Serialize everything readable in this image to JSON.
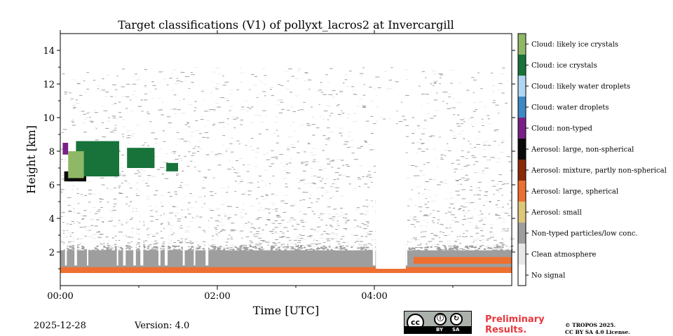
{
  "chart_data": {
    "type": "heatmap",
    "title": "Target classifications (V1) of pollyxt_lacros2 at Invercargill",
    "xlabel": "Time [UTC]",
    "ylabel": "Height [km]",
    "xlim_hours": [
      0,
      5.75
    ],
    "ylim": [
      0,
      15
    ],
    "x_ticks": [
      {
        "value": 0,
        "label": "00:00"
      },
      {
        "value": 2,
        "label": "02:00"
      },
      {
        "value": 4,
        "label": "04:00"
      }
    ],
    "x_minor_ticks": [
      1,
      3,
      5
    ],
    "y_ticks": [
      {
        "value": 2,
        "label": "2"
      },
      {
        "value": 4,
        "label": "4"
      },
      {
        "value": 6,
        "label": "6"
      },
      {
        "value": 8,
        "label": "8"
      },
      {
        "value": 10,
        "label": "10"
      },
      {
        "value": 12,
        "label": "12"
      },
      {
        "value": 14,
        "label": "14"
      }
    ],
    "colorbar": [
      {
        "label": "No signal",
        "color": "#ffffff"
      },
      {
        "label": "Clean atmosphere",
        "color": "#e8e8e8"
      },
      {
        "label": "Non-typed particles/low conc.",
        "color": "#9e9e9e"
      },
      {
        "label": "Aerosol: small",
        "color": "#dfc77a"
      },
      {
        "label": "Aerosol: large, spherical",
        "color": "#ee7031"
      },
      {
        "label": "Aerosol: mixture, partly non-spherical",
        "color": "#8a2a06"
      },
      {
        "label": "Aerosol: large, non-spherical",
        "color": "#0a0a0a"
      },
      {
        "label": "Cloud: non-typed",
        "color": "#7a1f86"
      },
      {
        "label": "Cloud: water droplets",
        "color": "#3c89c6"
      },
      {
        "label": "Cloud: likely water droplets",
        "color": "#afd7f3"
      },
      {
        "label": "Cloud: ice crystals",
        "color": "#17733a"
      },
      {
        "label": "Cloud: likely ice crystals",
        "color": "#8fb866"
      }
    ],
    "regions": [
      {
        "class": 2,
        "t0": 0.0,
        "t1": 5.75,
        "h0": 0.9,
        "h1": 2.1
      },
      {
        "class": 4,
        "t0": 0.0,
        "t1": 5.75,
        "h0": 0.75,
        "h1": 1.1
      },
      {
        "class": 4,
        "t0": 4.5,
        "t1": 5.75,
        "h0": 1.3,
        "h1": 1.7
      },
      {
        "class": 6,
        "t0": 0.05,
        "t1": 0.33,
        "h0": 6.2,
        "h1": 6.8
      },
      {
        "class": 10,
        "t0": 0.2,
        "t1": 0.75,
        "h0": 6.5,
        "h1": 8.6
      },
      {
        "class": 11,
        "t0": 0.1,
        "t1": 0.3,
        "h0": 6.4,
        "h1": 8.0
      },
      {
        "class": 10,
        "t0": 0.85,
        "t1": 1.2,
        "h0": 7.0,
        "h1": 8.2
      },
      {
        "class": 10,
        "t0": 1.35,
        "t1": 1.5,
        "h0": 6.8,
        "h1": 7.3
      },
      {
        "class": 7,
        "t0": 0.03,
        "t1": 0.1,
        "h0": 7.8,
        "h1": 8.5
      }
    ]
  },
  "footer": {
    "date": "2025-12-28",
    "version": "Version: 4.0",
    "license_badge": {
      "cc": "cc",
      "by": "BY",
      "sa": "SA"
    },
    "preliminary_line1": "Preliminary",
    "preliminary_line2": "Results.",
    "copyright_line1": "© TROPOS 2025.",
    "copyright_line2": "CC BY SA 4.0 License."
  }
}
